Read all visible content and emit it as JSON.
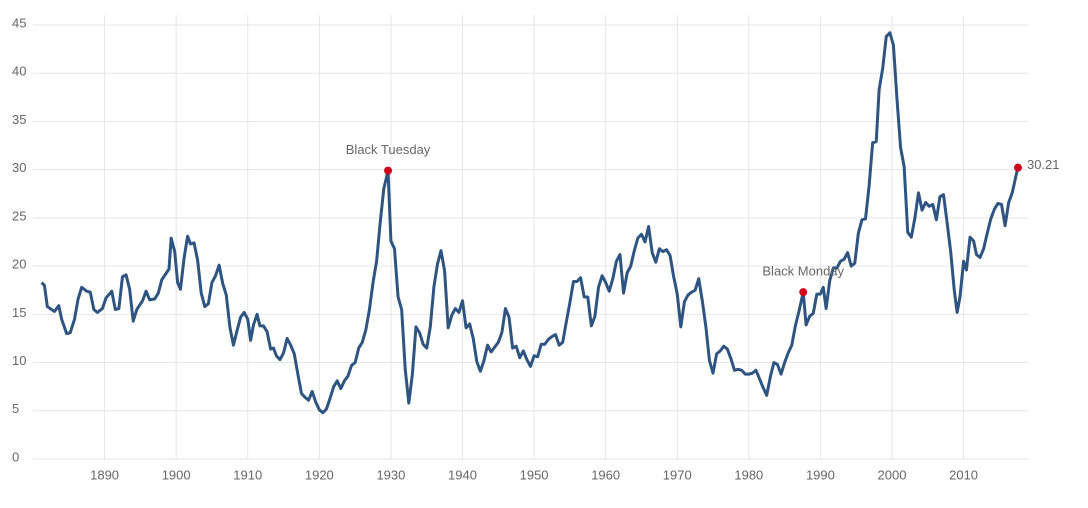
{
  "chart_data": {
    "type": "line",
    "x": [
      1881.2,
      1881.6,
      1882,
      1883,
      1883.6,
      1884,
      1884.7,
      1885.2,
      1885.8,
      1886.3,
      1886.8,
      1887.5,
      1888,
      1888.5,
      1889,
      1889.7,
      1890.2,
      1891,
      1891.5,
      1892,
      1892.5,
      1893,
      1893.5,
      1894,
      1894.5,
      1895.3,
      1895.8,
      1896.3,
      1897,
      1897.5,
      1898,
      1899,
      1899.3,
      1899.8,
      1900.2,
      1900.6,
      1901.1,
      1901.6,
      1902,
      1902.5,
      1903,
      1903.5,
      1904,
      1904.5,
      1905,
      1905.5,
      1906,
      1906.5,
      1907,
      1907.5,
      1908,
      1908.5,
      1909,
      1909.5,
      1910,
      1910.4,
      1910.8,
      1911.3,
      1911.7,
      1912.2,
      1912.7,
      1913.2,
      1913.6,
      1914,
      1914.5,
      1915,
      1915.5,
      1916,
      1916.5,
      1917,
      1917.5,
      1918,
      1918.5,
      1919,
      1919.5,
      1920,
      1920.5,
      1921,
      1921.5,
      1922,
      1922.5,
      1923,
      1923.5,
      1924,
      1924.5,
      1925,
      1925.5,
      1926,
      1926.5,
      1927,
      1927.5,
      1928,
      1928.5,
      1929,
      1929.6,
      1930,
      1930.5,
      1931,
      1931.5,
      1932,
      1932.5,
      1933,
      1933.5,
      1934,
      1934.5,
      1935,
      1935.5,
      1936,
      1936.5,
      1937,
      1937.5,
      1938,
      1938.5,
      1939,
      1939.5,
      1940,
      1940.5,
      1941,
      1941.5,
      1942,
      1942.5,
      1943,
      1943.5,
      1944,
      1944.5,
      1945,
      1945.5,
      1946,
      1946.5,
      1947,
      1947.5,
      1948,
      1948.5,
      1949,
      1949.5,
      1950,
      1950.5,
      1951,
      1951.5,
      1952,
      1952.5,
      1953,
      1953.5,
      1954,
      1954.5,
      1955,
      1955.5,
      1956,
      1956.5,
      1957,
      1957.5,
      1958,
      1958.5,
      1959,
      1959.5,
      1960,
      1960.5,
      1961,
      1961.5,
      1962,
      1962.5,
      1963,
      1963.5,
      1964,
      1964.5,
      1965,
      1965.5,
      1966,
      1966.5,
      1967,
      1967.5,
      1968,
      1968.5,
      1969,
      1969.5,
      1970,
      1970.5,
      1971,
      1971.5,
      1972,
      1972.5,
      1973,
      1973.5,
      1974,
      1974.5,
      1975,
      1975.5,
      1976,
      1976.5,
      1977,
      1977.5,
      1978,
      1978.5,
      1979,
      1979.5,
      1980,
      1980.5,
      1981,
      1981.5,
      1982,
      1982.5,
      1983,
      1983.5,
      1984,
      1984.5,
      1985,
      1985.5,
      1986,
      1986.5,
      1987,
      1987.6,
      1988,
      1988.5,
      1989,
      1989.5,
      1990,
      1990.4,
      1990.8,
      1991.3,
      1991.8,
      1992.3,
      1992.8,
      1993.3,
      1993.8,
      1994.3,
      1994.8,
      1995.3,
      1995.8,
      1996.3,
      1996.8,
      1997.3,
      1997.8,
      1998.2,
      1998.7,
      1999.2,
      1999.7,
      2000.2,
      2000.7,
      2001.2,
      2001.7,
      2002.2,
      2002.7,
      2003.2,
      2003.7,
      2004.2,
      2004.7,
      2005.2,
      2005.7,
      2006.2,
      2006.7,
      2007.2,
      2007.7,
      2008.2,
      2008.7,
      2009.1,
      2009.5,
      2010,
      2010.4,
      2010.9,
      2011.4,
      2011.8,
      2012.3,
      2012.8,
      2013.3,
      2013.8,
      2014.3,
      2014.8,
      2015.3,
      2015.8,
      2016.3,
      2016.8,
      2017.3,
      2017.6
    ],
    "series": [
      {
        "color": "#2e5481",
        "values": [
          18.3,
          18.0,
          15.8,
          15.3,
          15.9,
          14.5,
          13.0,
          13.1,
          14.5,
          16.6,
          17.8,
          17.4,
          17.3,
          15.5,
          15.2,
          15.6,
          16.7,
          17.4,
          15.5,
          15.6,
          18.9,
          19.1,
          17.6,
          14.3,
          15.5,
          16.4,
          17.4,
          16.5,
          16.6,
          17.2,
          18.6,
          19.7,
          22.9,
          21.5,
          18.3,
          17.6,
          20.8,
          23.1,
          22.3,
          22.4,
          20.6,
          17.2,
          15.8,
          16.1,
          18.3,
          19.0,
          20.1,
          18.2,
          17.0,
          13.7,
          11.8,
          13.3,
          14.7,
          15.2,
          14.5,
          12.3,
          13.9,
          15.0,
          13.8,
          13.8,
          13.2,
          11.4,
          11.5,
          10.7,
          10.3,
          11.0,
          12.5,
          11.8,
          10.9,
          8.8,
          6.8,
          6.4,
          6.1,
          7.0,
          5.9,
          5.1,
          4.8,
          5.2,
          6.3,
          7.5,
          8.1,
          7.3,
          8.1,
          8.6,
          9.7,
          10.0,
          11.5,
          12.1,
          13.4,
          15.5,
          18.3,
          20.5,
          24.5,
          28.0,
          29.9,
          22.6,
          21.8,
          16.8,
          15.5,
          9.3,
          5.8,
          8.8,
          13.7,
          13.1,
          11.9,
          11.5,
          13.7,
          17.8,
          20.2,
          21.6,
          19.5,
          13.6,
          14.9,
          15.6,
          15.2,
          16.4,
          13.6,
          14.0,
          12.5,
          10.1,
          9.1,
          10.2,
          11.8,
          11.1,
          11.6,
          12.1,
          13.1,
          15.6,
          14.7,
          11.5,
          11.7,
          10.5,
          11.2,
          10.3,
          9.6,
          10.7,
          10.6,
          11.9,
          11.9,
          12.4,
          12.7,
          12.9,
          11.8,
          12.1,
          14.2,
          16.2,
          18.4,
          18.4,
          18.8,
          16.8,
          16.8,
          13.8,
          14.8,
          17.8,
          19.0,
          18.3,
          17.4,
          18.7,
          20.5,
          21.2,
          17.2,
          19.3,
          20.0,
          21.6,
          22.9,
          23.3,
          22.5,
          24.1,
          21.4,
          20.4,
          21.8,
          21.5,
          21.7,
          21.1,
          18.9,
          17.1,
          13.7,
          16.3,
          17.0,
          17.3,
          17.5,
          18.7,
          16.4,
          13.7,
          10.2,
          8.9,
          10.9,
          11.2,
          11.7,
          11.4,
          10.4,
          9.2,
          9.3,
          9.2,
          8.8,
          8.8,
          8.9,
          9.2,
          8.3,
          7.4,
          6.6,
          8.5,
          10.0,
          9.8,
          8.8,
          10.0,
          11.0,
          11.8,
          13.8,
          15.3,
          17.3,
          13.9,
          14.8,
          15.1,
          17.1,
          17.1,
          17.8,
          15.6,
          18.5,
          19.8,
          19.8,
          20.5,
          20.7,
          21.4,
          20.0,
          20.3,
          23.4,
          24.8,
          24.9,
          28.3,
          32.8,
          32.9,
          38.3,
          40.5,
          43.8,
          44.2,
          42.9,
          37.3,
          32.3,
          30.3,
          23.5,
          23.0,
          25.0,
          27.6,
          25.8,
          26.6,
          26.2,
          26.4,
          24.8,
          27.2,
          27.4,
          24.5,
          21.5,
          17.5,
          15.2,
          16.8,
          20.5,
          19.6,
          23.0,
          22.6,
          21.2,
          20.9,
          21.8,
          23.4,
          24.9,
          25.9,
          26.5,
          26.4,
          24.2,
          26.6,
          27.6,
          29.3,
          30.21
        ]
      }
    ],
    "annotations": [
      {
        "x": 1929.6,
        "text": "Black Tuesday"
      },
      {
        "x": 1987.6,
        "text": "Black Monday"
      }
    ],
    "end_label": true,
    "marker_color": "#d0021b",
    "xlim": [
      1880,
      2019
    ],
    "xticks": [
      1890,
      1900,
      1910,
      1920,
      1930,
      1940,
      1950,
      1960,
      1970,
      1980,
      1990,
      2000,
      2010
    ],
    "ylim": [
      0,
      45
    ],
    "yticks": [
      0,
      5,
      10,
      15,
      20,
      25,
      30,
      35,
      40,
      45
    ],
    "grid": true
  }
}
